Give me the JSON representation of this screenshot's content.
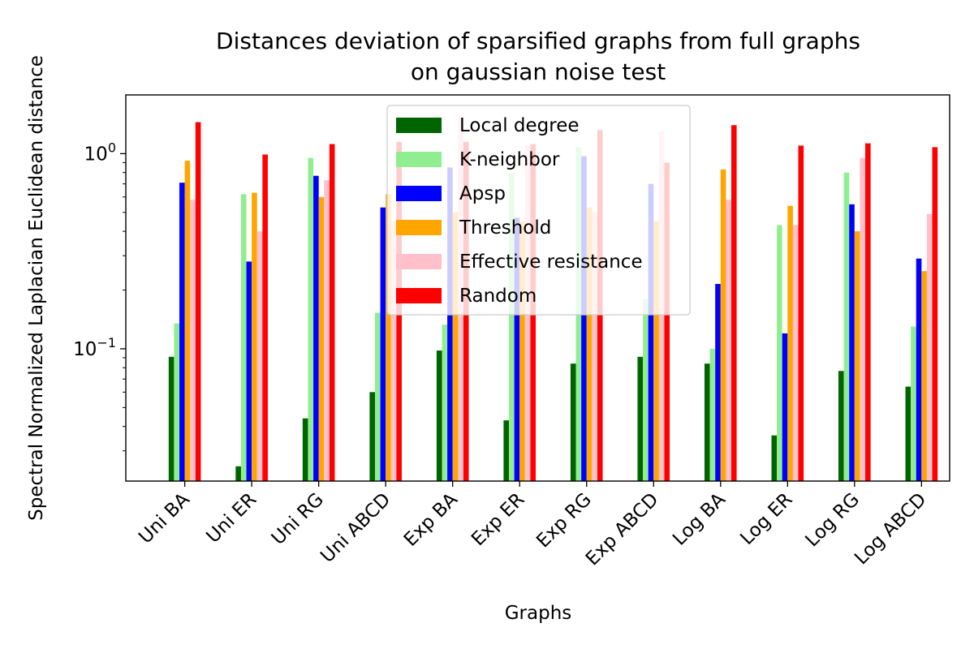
{
  "chart_data": {
    "type": "bar",
    "title_line1": "Distances deviation of sparsified graphs from full graphs",
    "title_line2": "on gaussian noise test",
    "xlabel": "Graphs",
    "ylabel": "Spectral Normalized Laplacian Euclidean distance",
    "y_scale": "log",
    "ylim": [
      0.021,
      2.0
    ],
    "y_ticks": [
      {
        "value": 1,
        "label": "10",
        "exp": "0"
      },
      {
        "value": 0.1,
        "label": "10",
        "exp": "−1"
      }
    ],
    "legend_placement": "upper center",
    "categories": [
      "Uni BA",
      "Uni ER",
      "Uni RG",
      "Uni ABCD",
      "Exp BA",
      "Exp ER",
      "Exp RG",
      "Exp ABCD",
      "Log BA",
      "Log ER",
      "Log RG",
      "Log ABCD"
    ],
    "series": [
      {
        "name": "Local degree",
        "color": "#006400",
        "values": [
          0.091,
          0.025,
          0.044,
          0.06,
          0.098,
          0.043,
          0.084,
          0.091,
          0.084,
          0.036,
          0.077,
          0.064
        ]
      },
      {
        "name": "K-neighbor",
        "color": "#90ee90",
        "values": [
          0.135,
          0.62,
          0.95,
          0.153,
          0.133,
          0.8,
          1.08,
          0.18,
          0.1,
          0.43,
          0.8,
          0.13
        ]
      },
      {
        "name": "Apsp",
        "color": "#0000ff",
        "values": [
          0.71,
          0.28,
          0.77,
          0.53,
          0.85,
          0.47,
          0.97,
          0.7,
          0.215,
          0.12,
          0.55,
          0.29
        ]
      },
      {
        "name": "Threshold",
        "color": "#ffa500",
        "values": [
          0.92,
          0.63,
          0.6,
          0.62,
          0.5,
          0.45,
          0.53,
          0.45,
          0.83,
          0.54,
          0.4,
          0.25
        ]
      },
      {
        "name": "Effective resistance",
        "color": "#ffc0cb",
        "values": [
          0.58,
          0.4,
          0.73,
          0.45,
          1.55,
          1.1,
          0.5,
          1.3,
          0.58,
          0.43,
          0.95,
          0.49
        ]
      },
      {
        "name": "Random",
        "color": "#ff0000",
        "values": [
          1.45,
          0.99,
          1.12,
          1.15,
          1.15,
          1.12,
          1.32,
          0.9,
          1.4,
          1.1,
          1.13,
          1.08
        ]
      }
    ]
  }
}
